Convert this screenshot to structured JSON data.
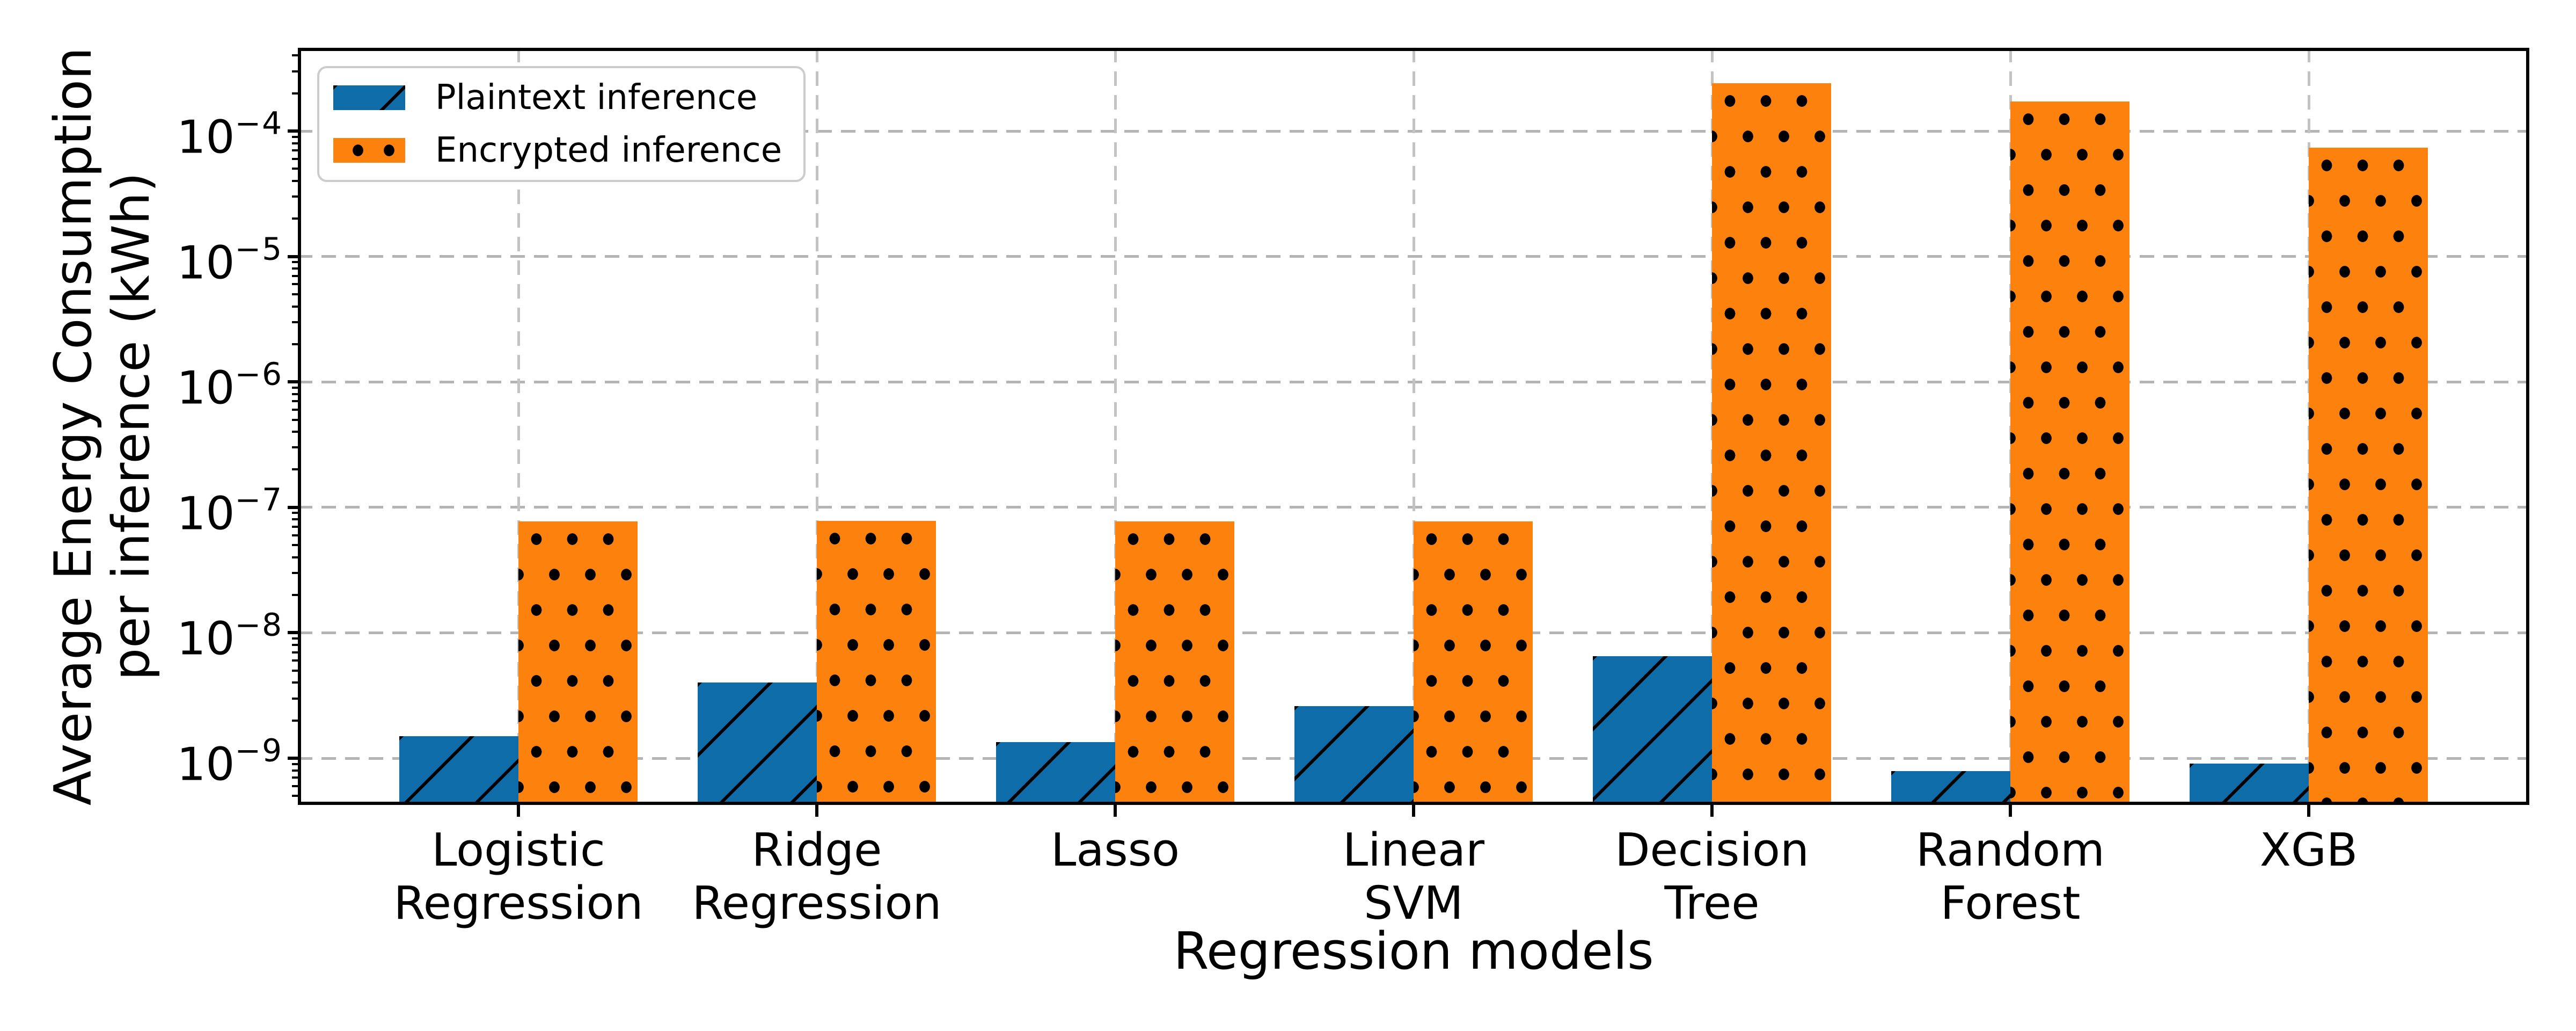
{
  "chart_data": {
    "type": "bar",
    "title": "",
    "xlabel": "Regression models",
    "ylabel_lines": [
      "Average Energy Consumption",
      "per inference (kWh)"
    ],
    "categories": [
      [
        "Logistic",
        "Regression"
      ],
      [
        "Ridge",
        "Regression"
      ],
      [
        "Lasso"
      ],
      [
        "Linear",
        "SVM"
      ],
      [
        "Decision",
        "Tree"
      ],
      [
        "Random",
        "Forest"
      ],
      [
        "XGB"
      ]
    ],
    "series": [
      {
        "name": "Plaintext inference",
        "color": "#0e6da9",
        "hatch": "diagonal",
        "values": [
          1.5e-09,
          4e-09,
          1.35e-09,
          2.6e-09,
          6.5e-09,
          7.9e-10,
          9.1e-10
        ]
      },
      {
        "name": "Encrypted inference",
        "color": "#fd810d",
        "hatch": "dots",
        "values": [
          7.7e-08,
          7.8e-08,
          7.7e-08,
          7.7e-08,
          0.00024,
          0.000172,
          7.4e-05
        ]
      }
    ],
    "y_scale": "log",
    "y_tick_base": "10",
    "y_tick_exponents": [
      "−4",
      "−5",
      "−6",
      "−7",
      "−8",
      "−9"
    ],
    "ylim": [
      4.2e-10,
      0.00046
    ],
    "grid": {
      "horizontal": true,
      "vertical": true,
      "style": "dashed",
      "color": "#b4b4b4"
    },
    "legend": {
      "position": "upper left"
    },
    "hatch_color": "#000000"
  }
}
